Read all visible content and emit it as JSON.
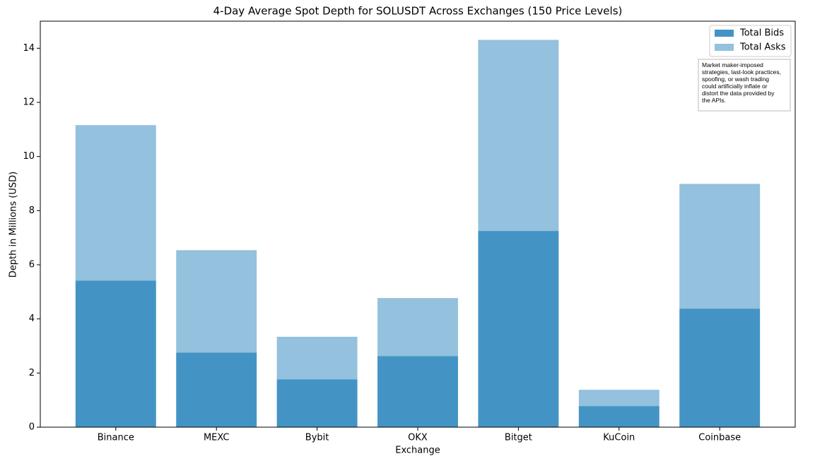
{
  "chart_data": {
    "type": "stacked_bar",
    "title": "4-Day Average Spot Depth for SOLUSDT Across Exchanges (150 Price Levels)",
    "x_label": "Exchange",
    "y_label": "Depth in Millions (USD)",
    "categories": [
      "Binance",
      "MEXC",
      "Bybit",
      "OKX",
      "Bitget",
      "KuCoin",
      "Coinbase"
    ],
    "series": [
      {
        "name": "Total Bids",
        "color": "#4394c4",
        "values": [
          5.42,
          2.76,
          1.77,
          2.63,
          7.25,
          0.78,
          4.38
        ]
      },
      {
        "name": "Total Asks",
        "color": "#93c1de",
        "values": [
          5.74,
          3.78,
          1.57,
          2.14,
          7.06,
          0.6,
          4.61
        ]
      }
    ],
    "ylim": [
      0,
      15
    ],
    "yticks": [
      0,
      2,
      4,
      6,
      8,
      10,
      12,
      14
    ],
    "legend": "upper right",
    "annotation": [
      "Market maker-imposed",
      "strategies, last-look practices,",
      "spoofing, or wash trading",
      "could artificially inflate or",
      "distort the data provided by",
      "the APIs."
    ]
  }
}
